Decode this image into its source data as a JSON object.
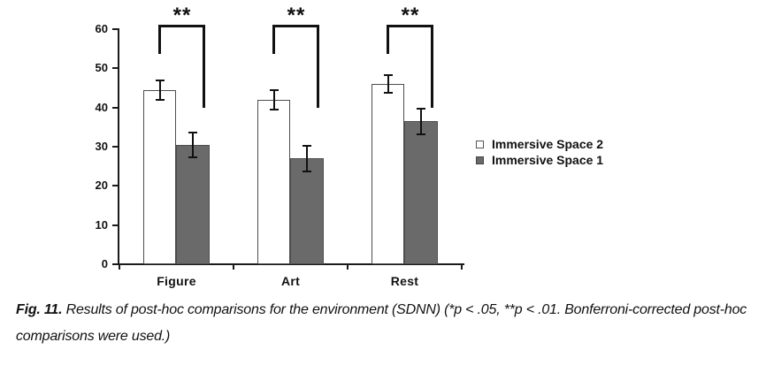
{
  "chart_data": {
    "type": "bar",
    "title": "",
    "xlabel": "",
    "ylabel": "",
    "categories": [
      "Figure",
      "Art",
      "Rest"
    ],
    "series": [
      {
        "name": "Immersive Space 2",
        "values": [
          44.5,
          42,
          46
        ],
        "errors": [
          2.5,
          2.5,
          2.2
        ],
        "fill": "#ffffff",
        "border": "#4d4d4d"
      },
      {
        "name": "Immersive Space 1",
        "values": [
          30.5,
          27,
          36.5
        ],
        "errors": [
          3.2,
          3.3,
          3.3
        ],
        "fill": "#6a6a6a",
        "border": "#4d4d4d"
      }
    ],
    "ylim": [
      0,
      60
    ],
    "yticks": [
      0,
      10,
      20,
      30,
      40,
      50,
      60
    ],
    "grid": false,
    "legend_position": "right",
    "significance": [
      {
        "category": "Figure",
        "label": "**"
      },
      {
        "category": "Art",
        "label": "**"
      },
      {
        "category": "Rest",
        "label": "**"
      }
    ]
  },
  "legend": {
    "items": [
      {
        "label": "Immersive Space 2",
        "swatch": "white-square"
      },
      {
        "label": "Immersive Space 1",
        "swatch": "gray-square"
      }
    ]
  },
  "caption": {
    "label": "Fig. 11.",
    "text": "Results of post-hoc comparisons for the environment (SDNN) (*p < .05, **p < .01. Bonferroni-corrected post-hoc comparisons were used.)"
  }
}
